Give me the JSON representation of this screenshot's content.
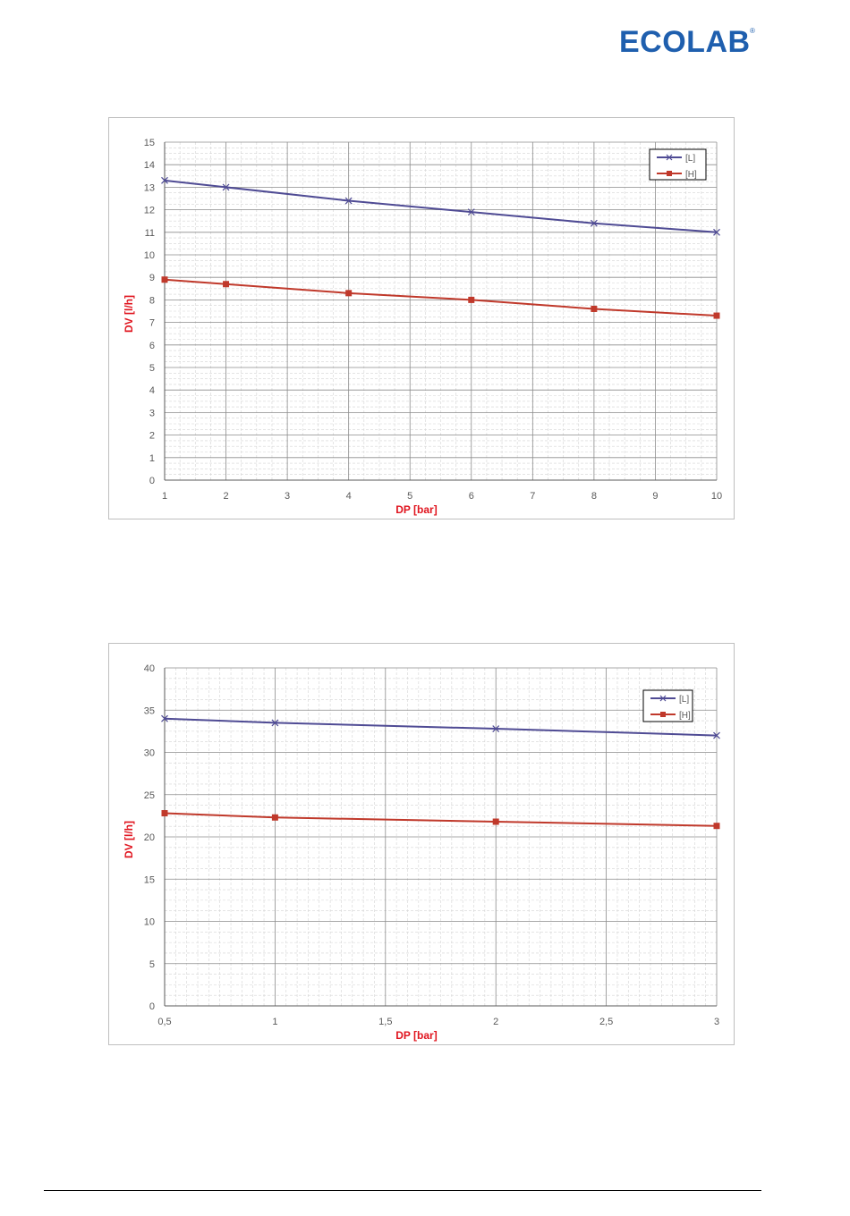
{
  "logo": {
    "name": "ECOLAB"
  },
  "colors": {
    "series_L": "#4f4b94",
    "series_H": "#c0392b",
    "axis_label": "#e0141e"
  },
  "chart_data": [
    {
      "type": "line",
      "xlabel": "DP [bar]",
      "ylabel": "DV [l/h]",
      "xlim": [
        1,
        10
      ],
      "ylim": [
        0,
        15
      ],
      "x_ticks": [
        "1",
        "2",
        "3",
        "4",
        "5",
        "6",
        "7",
        "8",
        "9",
        "10"
      ],
      "y_ticks": [
        "0",
        "1",
        "2",
        "3",
        "4",
        "5",
        "6",
        "7",
        "8",
        "9",
        "10",
        "11",
        "12",
        "13",
        "14",
        "15"
      ],
      "grid": true,
      "legend_position": "top-right",
      "series": [
        {
          "name": "[L]",
          "marker": "x",
          "x": [
            1,
            2,
            4,
            6,
            8,
            10
          ],
          "y": [
            13.3,
            13.0,
            12.4,
            11.9,
            11.4,
            11.0
          ]
        },
        {
          "name": "[H]",
          "marker": "square",
          "x": [
            1,
            2,
            4,
            6,
            8,
            10
          ],
          "y": [
            8.9,
            8.7,
            8.3,
            8.0,
            7.6,
            7.3
          ]
        }
      ]
    },
    {
      "type": "line",
      "xlabel": "DP [bar]",
      "ylabel": "DV [l/h]",
      "xlim": [
        0.5,
        3
      ],
      "ylim": [
        0,
        40
      ],
      "x_ticks": [
        "0,5",
        "1",
        "1,5",
        "2",
        "2,5",
        "3"
      ],
      "y_ticks": [
        "0",
        "5",
        "10",
        "15",
        "20",
        "25",
        "30",
        "35",
        "40"
      ],
      "grid": true,
      "legend_position": "top-right",
      "series": [
        {
          "name": "[L]",
          "marker": "x",
          "x": [
            0.5,
            1,
            2,
            3
          ],
          "y": [
            34.0,
            33.5,
            32.8,
            32.0
          ]
        },
        {
          "name": "[H]",
          "marker": "square",
          "x": [
            0.5,
            1,
            2,
            3
          ],
          "y": [
            22.8,
            22.3,
            21.8,
            21.3
          ]
        }
      ]
    }
  ]
}
